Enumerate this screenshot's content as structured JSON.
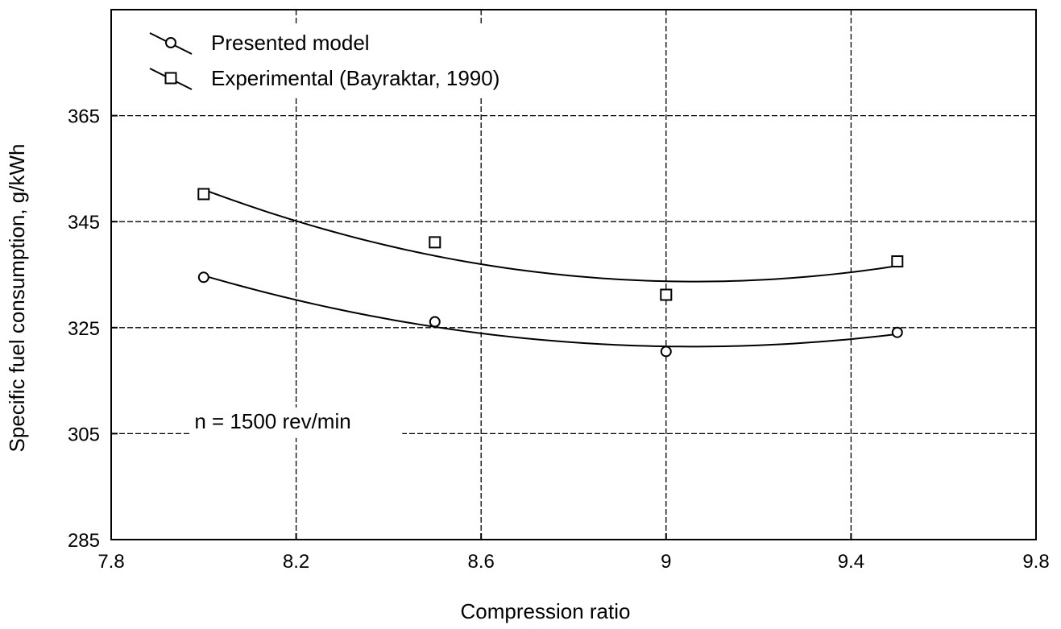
{
  "chart_data": {
    "type": "scatter",
    "title": "",
    "xlabel": "Compression ratio",
    "ylabel": "Specific fuel consumption, g/kWh",
    "xlim": [
      7.8,
      9.8
    ],
    "ylim": [
      285,
      385
    ],
    "xticks": [
      7.8,
      8.2,
      8.6,
      9,
      9.4,
      9.8
    ],
    "xtick_labels": [
      "7.8",
      "8.2",
      "8.6",
      "9",
      "9.4",
      "9.8"
    ],
    "yticks": [
      285,
      305,
      325,
      345,
      365
    ],
    "ytick_labels": [
      "285",
      "305",
      "325",
      "345",
      "365"
    ],
    "grid": true,
    "legend_position": "top-left",
    "series": [
      {
        "name": "Presented model",
        "marker": "circle",
        "x": [
          8,
          8.5,
          9,
          9.5
        ],
        "values": [
          334.5,
          326.1,
          320.5,
          324.1
        ],
        "fit": "quadratic"
      },
      {
        "name": "Experimental (Bayraktar, 1990)",
        "marker": "square",
        "x": [
          8,
          8.5,
          9,
          9.5
        ],
        "values": [
          350.2,
          341.1,
          331.2,
          337.5
        ],
        "fit": "quadratic"
      }
    ],
    "annotations": [
      {
        "text": "n = 1500 rev/min",
        "x": 7.98,
        "y": 306
      }
    ]
  }
}
